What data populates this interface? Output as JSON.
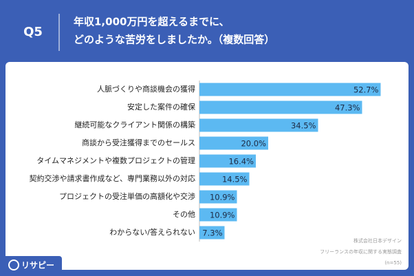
{
  "chart_data": {
    "type": "bar",
    "orientation": "horizontal",
    "question": "Q5",
    "title": [
      "年収1,000万円を超えるまでに、",
      "どのような苦労をしましたか。（複数回答）"
    ],
    "categories": [
      "人脈づくりや商談機会の獲得",
      "安定した案件の確保",
      "継続可能なクライアント関係の構築",
      "商談から受注獲得までのセールス",
      "タイムマネジメントや複数プロジェクトの管理",
      "契約交渉や請求書作成など、専門業務以外の対応",
      "プロジェクトの受注単価の高額化や交渉",
      "その他",
      "わからない/答えられない"
    ],
    "values": [
      52.7,
      47.3,
      34.5,
      20.0,
      16.4,
      14.5,
      10.9,
      10.9,
      7.3
    ],
    "value_labels": [
      "52.7%",
      "47.3%",
      "34.5%",
      "20.0%",
      "16.4%",
      "14.5%",
      "10.9%",
      "10.9%",
      "7.3%"
    ],
    "color": "#5cb9f2",
    "source": [
      "株式会社日本デザイン",
      "フリーランスの年収に関する実態調査",
      "(n=55)"
    ],
    "brand": "リサピー"
  }
}
